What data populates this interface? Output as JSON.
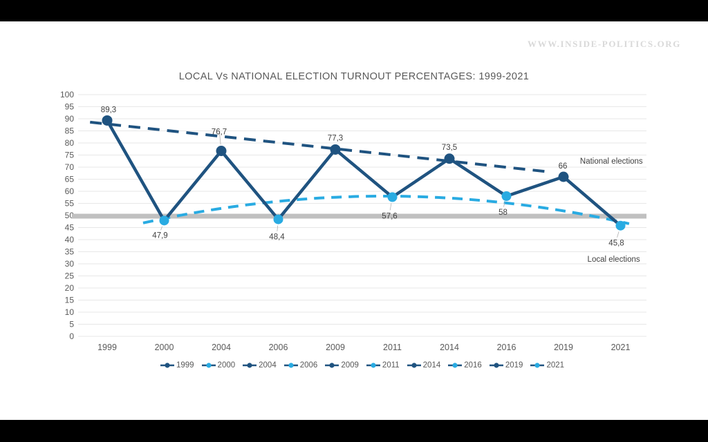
{
  "page": {
    "watermark": "WWW.INSIDE-POLITICS.ORG",
    "title": "LOCAL Vs NATIONAL ELECTION TURNOUT PERCENTAGES: 1999-2021"
  },
  "colors": {
    "national": "#1f5380",
    "local": "#29abe2",
    "gridline": "#e7e7e7",
    "reference_band": "#c0c0c0",
    "axis_text": "#595959",
    "label_text": "#404040",
    "leader_line": "#b0b0b0",
    "watermark_text": "#d9d9d9",
    "background": "#ffffff",
    "letterbox": "#000000"
  },
  "chart_data": {
    "type": "line",
    "title": "LOCAL Vs NATIONAL ELECTION TURNOUT PERCENTAGES: 1999-2021",
    "categories": [
      "1999",
      "2000",
      "2004",
      "2006",
      "2009",
      "2011",
      "2014",
      "2016",
      "2019",
      "2021"
    ],
    "values": [
      89.3,
      47.9,
      76.7,
      48.4,
      77.3,
      57.6,
      73.5,
      58,
      66,
      45.8
    ],
    "value_labels": [
      "89,3",
      "47,9",
      "76,7",
      "48,4",
      "77,3",
      "57,6",
      "73,5",
      "58",
      "66",
      "45,8"
    ],
    "point_series": [
      "national",
      "local",
      "national",
      "local",
      "national",
      "local",
      "national",
      "local",
      "national",
      "local"
    ],
    "label_side": [
      "above",
      "below",
      "above",
      "below",
      "above",
      "below",
      "above",
      "below",
      "above",
      "below"
    ],
    "ylim": [
      0,
      100
    ],
    "ytick_step": 5,
    "yticks": [
      0,
      5,
      10,
      15,
      20,
      25,
      30,
      35,
      40,
      45,
      50,
      55,
      60,
      65,
      70,
      75,
      80,
      85,
      90,
      95,
      100
    ],
    "grid": true,
    "reference_line": 50,
    "trendlines": [
      {
        "label": "National elections",
        "series": "national",
        "shape": "linear",
        "from_index": -0.3,
        "from_value": 88.6,
        "to_index": 7.76,
        "to_value": 68.0
      },
      {
        "label": "Local elections",
        "series": "local",
        "shape": "quadratic",
        "from_index": 0.63,
        "from_value": 46.9,
        "peak_value": 58.0,
        "to_index": 9.15,
        "to_value": 46.6
      }
    ],
    "annotations": [
      {
        "text": "National elections",
        "index": 8.84,
        "value": 72.6,
        "series": "national"
      },
      {
        "text": "Local elections",
        "index": 8.88,
        "value": 32.0,
        "series": "local"
      }
    ],
    "legend": [
      "1999",
      "2000",
      "2004",
      "2006",
      "2009",
      "2011",
      "2014",
      "2016",
      "2019",
      "2021"
    ],
    "legend_position": "bottom"
  }
}
